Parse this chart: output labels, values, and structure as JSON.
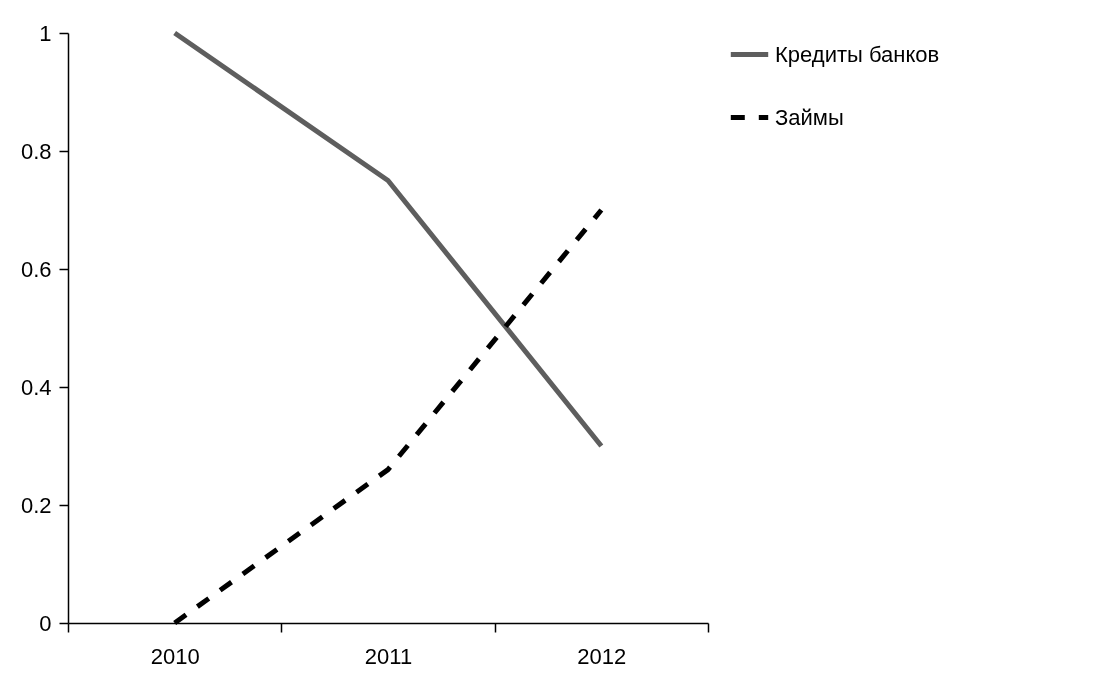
{
  "chart_data": {
    "type": "line",
    "categories": [
      "2010",
      "2011",
      "2012"
    ],
    "series": [
      {
        "name": "Кредиты банков",
        "color": "#5e5e5e",
        "line_style": "solid",
        "values": [
          1,
          0.75,
          0.3
        ]
      },
      {
        "name": "Займы",
        "color": "#000000",
        "line_style": "dashed",
        "values": [
          0,
          0.26,
          0.7
        ]
      }
    ],
    "ylim": [
      0,
      1
    ],
    "yticks": [
      0,
      0.2,
      0.4,
      0.6,
      0.8,
      1
    ],
    "grid": false,
    "legend": "right"
  }
}
